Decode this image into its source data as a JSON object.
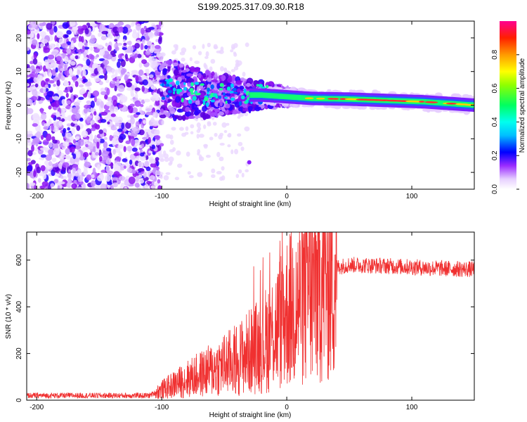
{
  "title": "S199.2025.317.09.30.R18",
  "colors": {
    "snr_line": "#f03030",
    "frame": "#000000",
    "background": "#ffffff"
  },
  "chart_data": [
    {
      "type": "heatmap",
      "xlabel": "Height of straight line (km)",
      "ylabel": "Frequency (Hz)",
      "xlim": [
        -208,
        150
      ],
      "ylim": [
        -25,
        25
      ],
      "xticks": [
        -200,
        -100,
        0,
        100
      ],
      "xtick_labels": [
        "-200",
        "-100",
        "0",
        "100"
      ],
      "yticks": [
        -20,
        -10,
        0,
        10,
        20
      ],
      "ytick_labels": [
        "-20",
        "-10",
        "0",
        "10",
        "20"
      ],
      "colorbar": {
        "label": "Normalized spectral amplitude",
        "range": [
          0,
          1
        ],
        "ticks": [
          0,
          0.2,
          0.4,
          0.6,
          0.8
        ],
        "tick_labels": [
          "0.0",
          "0.2",
          "0.4",
          "0.6",
          "0.8"
        ]
      },
      "ridge": {
        "description": "Narrow high-amplitude signal band near 0-3 Hz for heights above about -30 km",
        "points": [
          [
            -100,
            5
          ],
          [
            -80,
            4
          ],
          [
            -60,
            3
          ],
          [
            -40,
            3
          ],
          [
            -20,
            3
          ],
          [
            0,
            2.5
          ],
          [
            20,
            2
          ],
          [
            50,
            1.8
          ],
          [
            80,
            1.4
          ],
          [
            110,
            1
          ],
          [
            150,
            0
          ]
        ]
      }
    },
    {
      "type": "line",
      "xlabel": "Height of straight line (km)",
      "ylabel": "SNR (10 * v/v)",
      "xlim": [
        -208,
        150
      ],
      "ylim": [
        0,
        720
      ],
      "xticks": [
        -200,
        -100,
        0,
        100
      ],
      "xtick_labels": [
        "-200",
        "-100",
        "0",
        "100"
      ],
      "yticks": [
        0,
        200,
        400,
        600
      ],
      "ytick_labels": [
        "0",
        "200",
        "400",
        "600"
      ],
      "series": [
        {
          "name": "SNR",
          "x": [
            -208,
            -150,
            -110,
            -100,
            -80,
            -60,
            -40,
            -20,
            -10,
            0,
            10,
            20,
            30,
            40,
            50,
            80,
            100,
            120,
            150
          ],
          "y": [
            20,
            20,
            20,
            45,
            90,
            130,
            175,
            240,
            300,
            380,
            430,
            480,
            540,
            570,
            580,
            575,
            570,
            565,
            560
          ]
        }
      ]
    }
  ]
}
